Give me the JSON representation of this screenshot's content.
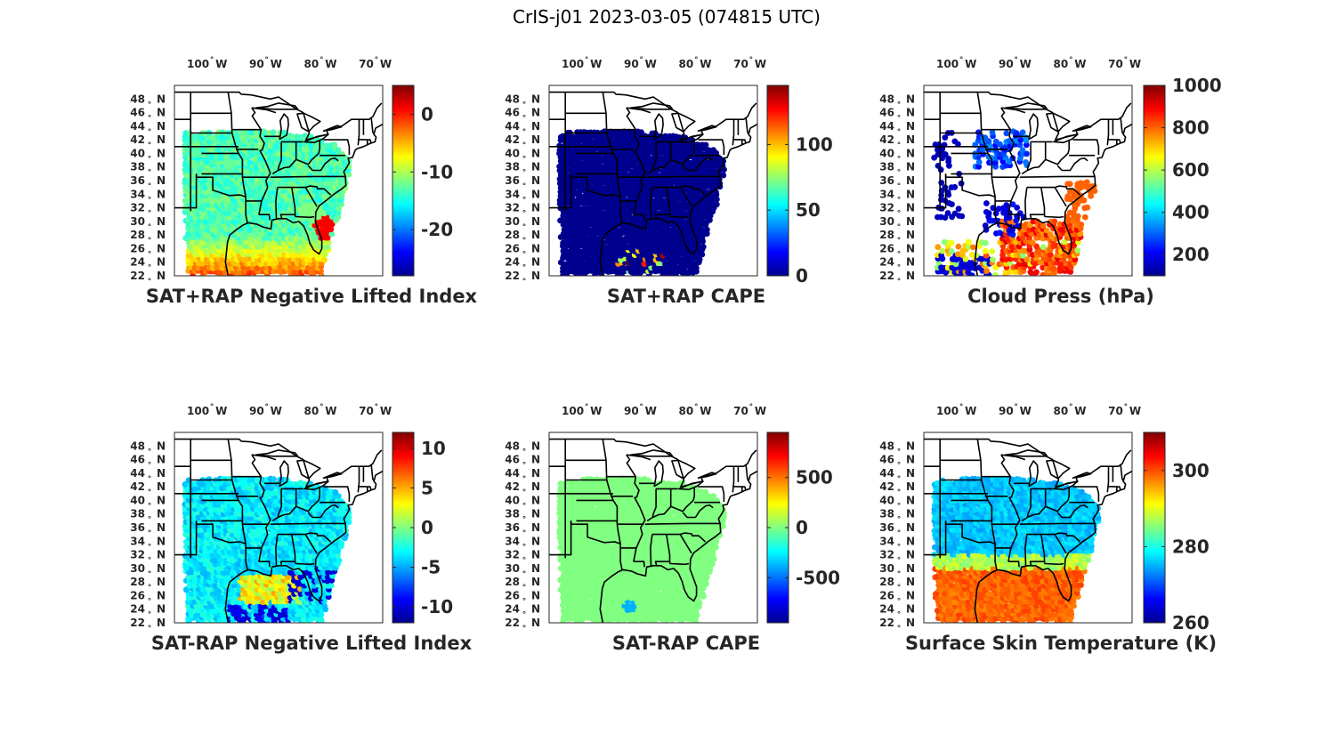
{
  "figure_title": "CrIS-j01 2023-03-05 (074815 UTC)",
  "colors": {
    "jet": [
      "#00008f",
      "#0000ff",
      "#0080ff",
      "#00ffff",
      "#80ff80",
      "#ffff00",
      "#ff8000",
      "#ff0000",
      "#800000"
    ],
    "land": "#ffffff",
    "border": "#000000",
    "text": "#262626"
  },
  "chart_data": [
    {
      "type": "map-scatter",
      "title": "SAT+RAP Negative Lifted Index",
      "lon_tick_labels": [
        "100",
        "90",
        "80",
        "70"
      ],
      "lon_units": [
        "W",
        "W",
        "W",
        "W"
      ],
      "lat_tick_labels": [
        "48",
        "46",
        "44",
        "42",
        "40",
        "38",
        "36",
        "34",
        "32",
        "30",
        "28",
        "26",
        "24",
        "22"
      ],
      "lat_units": [
        "N",
        "N",
        "N",
        "N",
        "N",
        "N",
        "N",
        "N",
        "N",
        "N",
        "N",
        "N",
        "N",
        "N"
      ],
      "lon_range": [
        -107,
        -69
      ],
      "lat_range": [
        22,
        50
      ],
      "colorbar": {
        "ticks": [
          "0",
          "-10",
          "-20"
        ],
        "tick_values": [
          0,
          -10,
          -20
        ],
        "clim": [
          -28,
          5
        ]
      },
      "field": {
        "pattern": "li",
        "background": 0.45
      }
    },
    {
      "type": "map-scatter",
      "title": "SAT+RAP CAPE",
      "lon_tick_labels": [
        "100",
        "90",
        "80",
        "70"
      ],
      "lon_units": [
        "W",
        "W",
        "W",
        "W"
      ],
      "lat_tick_labels": [
        "48",
        "46",
        "44",
        "42",
        "40",
        "38",
        "36",
        "34",
        "32",
        "30",
        "28",
        "26",
        "24",
        "22"
      ],
      "lat_units": [
        "N",
        "N",
        "N",
        "N",
        "N",
        "N",
        "N",
        "N",
        "N",
        "N",
        "N",
        "N",
        "N",
        "N"
      ],
      "lon_range": [
        -107,
        -69
      ],
      "lat_range": [
        22,
        50
      ],
      "colorbar": {
        "ticks": [
          "100",
          "50",
          "0"
        ],
        "tick_values": [
          100,
          50,
          0
        ],
        "clim": [
          0,
          145
        ]
      },
      "field": {
        "pattern": "cape",
        "background": 0.0
      }
    },
    {
      "type": "map-scatter",
      "title": "Cloud Press (hPa)",
      "lon_tick_labels": [
        "100",
        "90",
        "80",
        "70"
      ],
      "lon_units": [
        "W",
        "W",
        "W",
        "W"
      ],
      "lat_tick_labels": [
        "48",
        "46",
        "44",
        "42",
        "40",
        "38",
        "36",
        "34",
        "32",
        "30",
        "28",
        "26",
        "24",
        "22"
      ],
      "lat_units": [
        "N",
        "N",
        "N",
        "N",
        "N",
        "N",
        "N",
        "N",
        "N",
        "N",
        "N",
        "N",
        "N",
        "N"
      ],
      "lon_range": [
        -107,
        -69
      ],
      "lat_range": [
        22,
        50
      ],
      "colorbar": {
        "ticks": [
          "1000",
          "800",
          "600",
          "400",
          "200"
        ],
        "tick_values": [
          1000,
          800,
          600,
          400,
          200
        ],
        "clim": [
          100,
          1000
        ]
      },
      "field": {
        "pattern": "cloud",
        "background": null
      }
    },
    {
      "type": "map-scatter",
      "title": "SAT-RAP Negative Lifted Index",
      "lon_tick_labels": [
        "100",
        "90",
        "80",
        "70"
      ],
      "lon_units": [
        "W",
        "W",
        "W",
        "W"
      ],
      "lat_tick_labels": [
        "48",
        "46",
        "44",
        "42",
        "40",
        "38",
        "36",
        "34",
        "32",
        "30",
        "28",
        "26",
        "24",
        "22"
      ],
      "lat_units": [
        "N",
        "N",
        "N",
        "N",
        "N",
        "N",
        "N",
        "N",
        "N",
        "N",
        "N",
        "N",
        "N",
        "N"
      ],
      "lon_range": [
        -107,
        -69
      ],
      "lat_range": [
        22,
        50
      ],
      "colorbar": {
        "ticks": [
          "10",
          "5",
          "0",
          "-5",
          "-10"
        ],
        "tick_values": [
          10,
          5,
          0,
          -5,
          -10
        ],
        "clim": [
          -12,
          12
        ]
      },
      "field": {
        "pattern": "dli",
        "background": 0.36
      }
    },
    {
      "type": "map-scatter",
      "title": "SAT-RAP CAPE",
      "lon_tick_labels": [
        "100",
        "90",
        "80",
        "70"
      ],
      "lon_units": [
        "W",
        "W",
        "W",
        "W"
      ],
      "lat_tick_labels": [
        "48",
        "46",
        "44",
        "42",
        "40",
        "38",
        "36",
        "34",
        "32",
        "30",
        "28",
        "26",
        "24",
        "22"
      ],
      "lat_units": [
        "N",
        "N",
        "N",
        "N",
        "N",
        "N",
        "N",
        "N",
        "N",
        "N",
        "N",
        "N",
        "N",
        "N"
      ],
      "lon_range": [
        -107,
        -69
      ],
      "lat_range": [
        22,
        50
      ],
      "colorbar": {
        "ticks": [
          "500",
          "0",
          "-500"
        ],
        "tick_values": [
          500,
          0,
          -500
        ],
        "clim": [
          -950,
          950
        ]
      },
      "field": {
        "pattern": "dcape",
        "background": 0.5
      }
    },
    {
      "type": "map-scatter",
      "title": "Surface Skin Temperature (K)",
      "lon_tick_labels": [
        "100",
        "90",
        "80",
        "70"
      ],
      "lon_units": [
        "W",
        "W",
        "W",
        "W"
      ],
      "lat_tick_labels": [
        "48",
        "46",
        "44",
        "42",
        "40",
        "38",
        "36",
        "34",
        "32",
        "30",
        "28",
        "26",
        "24",
        "22"
      ],
      "lat_units": [
        "N",
        "N",
        "N",
        "N",
        "N",
        "N",
        "N",
        "N",
        "N",
        "N",
        "N",
        "N",
        "N",
        "N"
      ],
      "lon_range": [
        -107,
        -69
      ],
      "lat_range": [
        22,
        50
      ],
      "colorbar": {
        "ticks": [
          "300",
          "280",
          "260"
        ],
        "tick_values": [
          300,
          280,
          260
        ],
        "clim": [
          260,
          310
        ]
      },
      "field": {
        "pattern": "skin",
        "background": 0.32
      }
    }
  ]
}
